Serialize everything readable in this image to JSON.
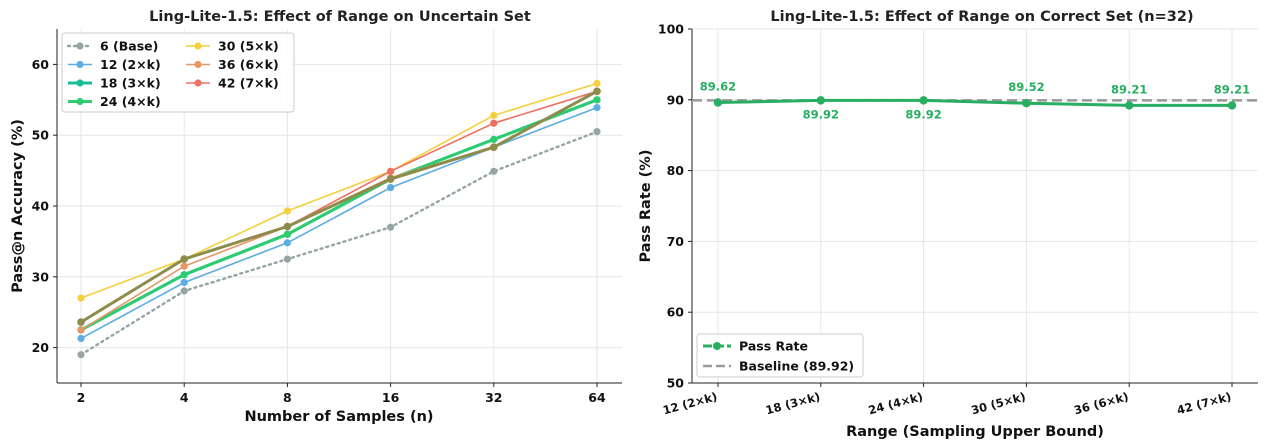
{
  "chart_data": [
    {
      "type": "line",
      "title": "Ling-Lite-1.5: Effect of Range on Uncertain Set",
      "xlabel": "Number of Samples (n)",
      "ylabel": "Pass@n Accuracy (%)",
      "x_scale": "log2",
      "x": [
        2,
        4,
        8,
        16,
        32,
        64
      ],
      "x_tick_labels": [
        "2",
        "4",
        "8",
        "16",
        "32",
        "64"
      ],
      "ylim": [
        15,
        65
      ],
      "y_ticks": [
        20,
        30,
        40,
        50,
        60
      ],
      "grid": true,
      "legend_position": "top-left",
      "series": [
        {
          "name": "6 (Base)",
          "color": "#95a5a6",
          "style": "dotted",
          "values": [
            19.0,
            28.0,
            32.5,
            37.0,
            44.9,
            50.5
          ]
        },
        {
          "name": "12 (2×k)",
          "color": "#5dade2",
          "style": "solid",
          "values": [
            21.3,
            29.2,
            34.8,
            42.6,
            48.3,
            53.9
          ]
        },
        {
          "name": "18 (3×k)",
          "color": "#1abc9c",
          "style": "bold",
          "values": [
            22.5,
            30.3,
            36.0,
            43.8,
            49.4,
            55.0
          ]
        },
        {
          "name": "24 (4×k)",
          "color": "#2ecc71",
          "style": "bold",
          "values": [
            22.5,
            30.3,
            36.0,
            43.8,
            49.4,
            55.0
          ]
        },
        {
          "name": "30 (5×k)",
          "color": "#f4d03f",
          "style": "solid",
          "values": [
            27.0,
            32.5,
            39.3,
            44.9,
            52.8,
            57.3
          ]
        },
        {
          "name": "36 (6×k)",
          "color": "#e59866",
          "style": "solid",
          "values": [
            22.5,
            31.5,
            37.1,
            44.0,
            48.3,
            56.2
          ]
        },
        {
          "name": "42 (7×k)",
          "color": "#ec7063",
          "style": "solid",
          "values": [
            23.6,
            32.5,
            37.1,
            44.9,
            51.7,
            56.2
          ]
        }
      ],
      "overlay": {
        "color": "#8e8c4a",
        "values": [
          23.6,
          32.5,
          37.1,
          43.8,
          48.3,
          56.2
        ]
      }
    },
    {
      "type": "line",
      "title": "Ling-Lite-1.5: Effect of Range on Correct Set (n=32)",
      "xlabel": "Range (Sampling Upper Bound)",
      "ylabel": "Pass Rate (%)",
      "categories": [
        "12 (2×k)",
        "18 (3×k)",
        "24 (4×k)",
        "30 (5×k)",
        "36 (6×k)",
        "42 (7×k)"
      ],
      "ylim": [
        50,
        100
      ],
      "y_ticks": [
        50,
        60,
        70,
        80,
        90,
        100
      ],
      "grid": true,
      "legend_position": "bottom-left",
      "series": [
        {
          "name": "Pass Rate",
          "color": "#27ae60",
          "values": [
            89.62,
            89.92,
            89.92,
            89.52,
            89.21,
            89.21
          ]
        }
      ],
      "data_labels": [
        "89.62",
        "89.92",
        "89.92",
        "89.52",
        "89.21",
        "89.21"
      ],
      "baseline": {
        "name": "Baseline (89.92)",
        "value": 89.92,
        "color": "#999999"
      }
    }
  ]
}
